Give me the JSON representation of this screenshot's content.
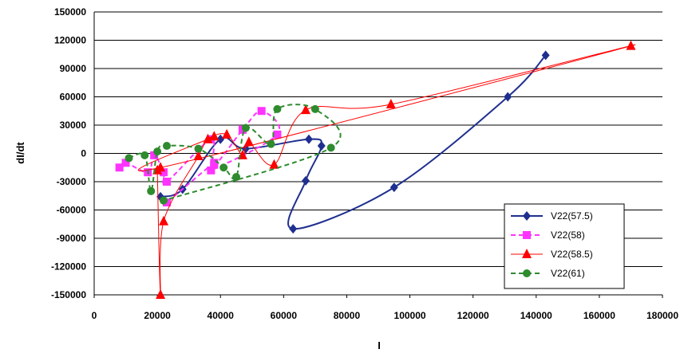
{
  "chart_data": {
    "type": "scatter",
    "title": "",
    "xlabel": "I",
    "ylabel": "dI/dt",
    "xlim": [
      0,
      180000
    ],
    "ylim": [
      -150000,
      150000
    ],
    "x_ticks": [
      0,
      20000,
      40000,
      60000,
      80000,
      100000,
      120000,
      140000,
      160000,
      180000
    ],
    "y_ticks": [
      150000,
      120000,
      90000,
      60000,
      30000,
      0,
      -30000,
      -60000,
      -90000,
      -120000,
      -150000
    ],
    "x_tick_labels": [
      "0",
      "20000",
      "40000",
      "60000",
      "80000",
      "100000",
      "120000",
      "140000",
      "160000",
      "180000"
    ],
    "y_tick_labels": [
      "150000",
      "120000",
      "90000",
      "60000",
      "30000",
      "0",
      "-30000",
      "-60000",
      "-90000",
      "-120000",
      "-150000"
    ],
    "grid": "horizontal",
    "legend_position": "bottom-right",
    "series": [
      {
        "name": "V22(57.5)",
        "color": "#1f2f8f",
        "marker": "diamond",
        "line_style": "solid",
        "x": [
          21000,
          28000,
          40000,
          48000,
          68000,
          72000,
          67000,
          63000,
          95000,
          131000,
          143000
        ],
        "y": [
          -46000,
          -38000,
          15000,
          5000,
          15000,
          8000,
          -29000,
          -80000,
          -36000,
          60000,
          104000
        ]
      },
      {
        "name": "V22(58)",
        "color": "#ff33ff",
        "marker": "square",
        "line_style": "dashed",
        "x": [
          8000,
          10000,
          17000,
          19000,
          22000,
          23000,
          37000,
          38000,
          47000,
          53000,
          58000,
          37000,
          38000,
          23000
        ],
        "y": [
          -15000,
          -10000,
          -20000,
          -2000,
          -20000,
          -30000,
          15000,
          -12000,
          25000,
          45000,
          20000,
          -18000,
          -10000,
          -52000
        ]
      },
      {
        "name": "V22(58.5)",
        "color": "#ff0000",
        "marker": "triangle",
        "line_style": "dotted-solid",
        "x": [
          20000,
          21000,
          22000,
          33000,
          36000,
          42000,
          47000,
          49000,
          57000,
          67000,
          94000,
          170000,
          21000,
          38000
        ],
        "y": [
          -18000,
          -150000,
          -72000,
          -3000,
          15000,
          20000,
          -2000,
          12000,
          -12000,
          46000,
          52000,
          114000,
          -15000,
          18000
        ]
      },
      {
        "name": "V22(61)",
        "color": "#2e8b2e",
        "marker": "circle",
        "line_style": "dashed",
        "x": [
          11000,
          16000,
          18000,
          20000,
          23000,
          33000,
          41000,
          45000,
          48000,
          56000,
          58000,
          70000,
          75000,
          22000
        ],
        "y": [
          -5000,
          -2000,
          -40000,
          2000,
          8000,
          5000,
          -15000,
          -25000,
          27000,
          10000,
          47000,
          47000,
          6000,
          -50000
        ]
      }
    ]
  }
}
